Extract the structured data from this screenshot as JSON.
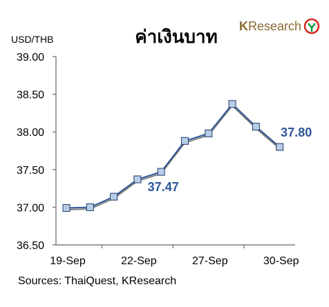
{
  "chart_data": {
    "type": "line",
    "title": "ค่าเงินบาท",
    "ylabel": "USD/THB",
    "ylim": [
      36.5,
      39.0
    ],
    "yticks": [
      "36.50",
      "37.00",
      "37.50",
      "38.00",
      "38.50",
      "39.00"
    ],
    "xtick_labels": [
      {
        "index": 0,
        "label": "19-Sep"
      },
      {
        "index": 3,
        "label": "22-Sep"
      },
      {
        "index": 6,
        "label": "27-Sep"
      },
      {
        "index": 9,
        "label": "30-Sep"
      }
    ],
    "series": [
      {
        "values": [
          36.99,
          37.0,
          37.14,
          37.37,
          37.47,
          37.88,
          37.98,
          38.37,
          38.07,
          37.8
        ]
      }
    ],
    "annotations": [
      {
        "index": 4,
        "text": "37.47"
      },
      {
        "index": 9,
        "text": "37.80"
      }
    ],
    "colors": {
      "line": "#2e5597",
      "marker_fill": "#b7cde8",
      "label": "#2e5597"
    },
    "grid": false,
    "source": "Sources: ThaiQuest, KResearch"
  },
  "logo": {
    "k": "K",
    "rest": "Research"
  }
}
